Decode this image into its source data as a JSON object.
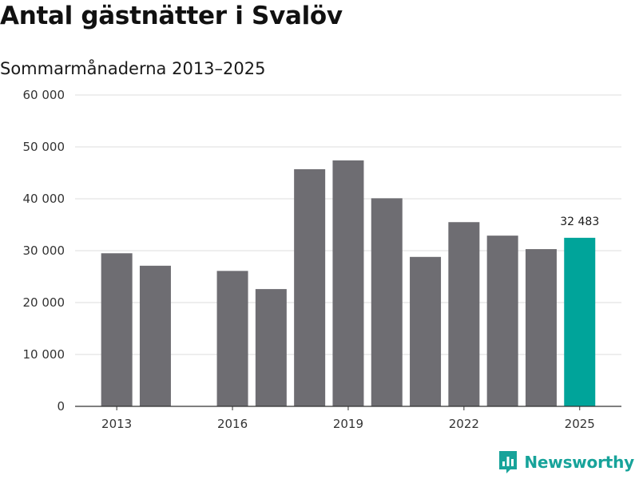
{
  "title": "Antal gästnätter i Svalöv",
  "subtitle": "Sommarmånaderna 2013–2025",
  "brand": {
    "name": "Newsworthy",
    "logo_icon": "newsworthy-logo-icon"
  },
  "colors": {
    "bar": "#6e6d72",
    "highlight": "#00a49a",
    "grid": "#dddddd",
    "axis": "#333333",
    "brand": "#17a39a"
  },
  "chart_data": {
    "type": "bar",
    "title": "Antal gästnätter i Svalöv",
    "subtitle": "Sommarmånaderna 2013–2025",
    "xlabel": "",
    "ylabel": "",
    "categories": [
      "2013",
      "2014",
      "2015",
      "2016",
      "2017",
      "2018",
      "2019",
      "2020",
      "2021",
      "2022",
      "2023",
      "2024",
      "2025"
    ],
    "values": [
      29500,
      27100,
      null,
      26100,
      22600,
      45700,
      47400,
      40100,
      28800,
      35500,
      32900,
      30300,
      32483
    ],
    "highlight_index": 12,
    "data_labels": [
      {
        "index": 12,
        "text": "32 483"
      }
    ],
    "x_tick_labels": [
      "2013",
      "2016",
      "2019",
      "2022",
      "2025"
    ],
    "x_tick_indices": [
      0,
      3,
      6,
      9,
      12
    ],
    "ylim": [
      0,
      60000
    ],
    "y_ticks": [
      0,
      10000,
      20000,
      30000,
      40000,
      50000,
      60000
    ],
    "y_tick_labels": [
      "0",
      "10 000",
      "20 000",
      "30 000",
      "40 000",
      "50 000",
      "60 000"
    ],
    "grid": true,
    "legend": "none"
  }
}
